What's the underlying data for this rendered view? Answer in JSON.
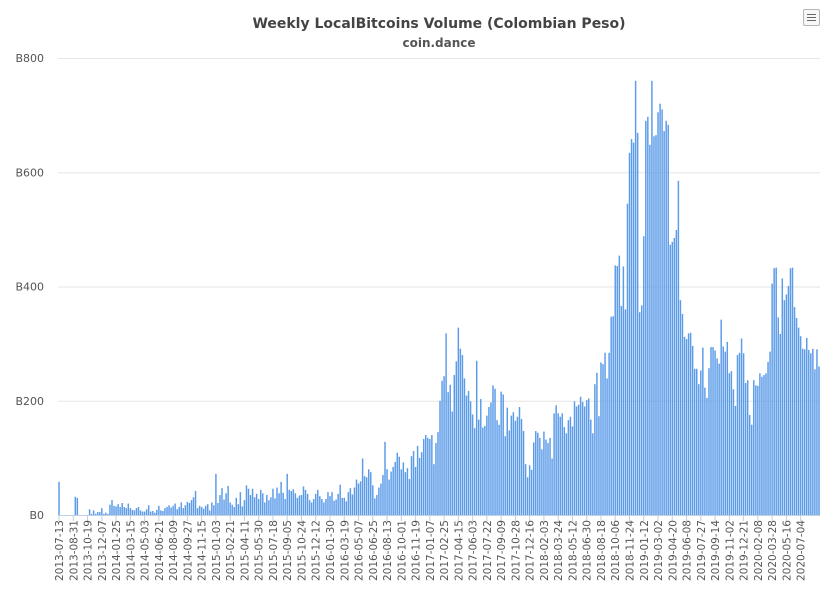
{
  "chart_data": {
    "type": "bar",
    "title": "Weekly LocalBitcoins Volume (Colombian Peso)",
    "subtitle": "coin.dance",
    "ylabel": "",
    "ylim": [
      0,
      800
    ],
    "y_tick_labels": [
      "B0",
      "B200",
      "B400",
      "B600",
      "B800"
    ],
    "x_tick_labels": [
      "2013-07-13",
      "2013-08-31",
      "2013-10-19",
      "2013-12-07",
      "2014-01-25",
      "2014-03-15",
      "2014-05-03",
      "2014-06-21",
      "2014-08-09",
      "2014-09-27",
      "2014-11-15",
      "2015-01-03",
      "2015-02-21",
      "2015-04-11",
      "2015-05-30",
      "2015-07-18",
      "2015-09-05",
      "2015-10-24",
      "2015-12-12",
      "2016-01-30",
      "2016-03-19",
      "2016-05-07",
      "2016-06-25",
      "2016-08-13",
      "2016-10-01",
      "2016-11-19",
      "2017-01-07",
      "2017-02-25",
      "2017-04-15",
      "2017-06-03",
      "2017-07-22",
      "2017-09-09",
      "2017-10-28",
      "2017-12-16",
      "2018-02-03",
      "2018-03-24",
      "2018-05-12",
      "2018-06-30",
      "2018-08-18",
      "2018-10-06",
      "2018-11-24",
      "2019-01-12",
      "2019-03-02",
      "2019-04-20",
      "2019-06-08",
      "2019-07-27",
      "2019-09-14",
      "2019-11-02",
      "2019-12-21",
      "2020-02-08",
      "2020-03-28",
      "2020-05-16",
      "2020-07-04"
    ],
    "weeks_per_tick": 7,
    "bar_color": "#5b9be8",
    "grid": true,
    "legend": "none",
    "values": [
      58,
      0,
      0,
      0,
      0,
      0,
      0,
      0,
      32,
      30,
      0,
      0,
      0,
      0,
      0,
      10,
      2,
      8,
      2,
      5,
      5,
      12,
      2,
      4,
      2,
      18,
      26,
      16,
      15,
      19,
      14,
      21,
      14,
      12,
      20,
      12,
      9,
      8,
      12,
      14,
      8,
      6,
      6,
      10,
      17,
      6,
      7,
      4,
      9,
      16,
      8,
      7,
      12,
      14,
      17,
      13,
      16,
      20,
      10,
      14,
      22,
      12,
      17,
      23,
      21,
      26,
      31,
      42,
      12,
      16,
      14,
      11,
      16,
      19,
      8,
      22,
      17,
      72,
      21,
      35,
      47,
      27,
      38,
      51,
      22,
      18,
      14,
      30,
      19,
      40,
      15,
      26,
      52,
      46,
      35,
      46,
      31,
      37,
      28,
      44,
      38,
      22,
      35,
      26,
      31,
      46,
      29,
      48,
      38,
      58,
      39,
      28,
      72,
      44,
      42,
      45,
      38,
      30,
      34,
      35,
      50,
      44,
      37,
      26,
      22,
      28,
      37,
      44,
      33,
      28,
      22,
      28,
      40,
      33,
      40,
      25,
      27,
      37,
      53,
      30,
      30,
      24,
      40,
      47,
      36,
      48,
      62,
      55,
      59,
      99,
      68,
      66,
      80,
      75,
      52,
      29,
      35,
      48,
      55,
      70,
      128,
      80,
      62,
      76,
      84,
      93,
      109,
      102,
      80,
      92,
      75,
      82,
      63,
      103,
      112,
      84,
      121,
      100,
      110,
      133,
      140,
      135,
      133,
      140,
      89,
      126,
      145,
      200,
      235,
      243,
      318,
      215,
      228,
      181,
      245,
      269,
      328,
      291,
      280,
      239,
      209,
      217,
      199,
      176,
      152,
      270,
      167,
      203,
      153,
      156,
      174,
      189,
      197,
      227,
      221,
      166,
      158,
      216,
      211,
      138,
      188,
      148,
      174,
      180,
      165,
      172,
      189,
      168,
      147,
      89,
      66,
      87,
      79,
      127,
      147,
      144,
      135,
      115,
      146,
      132,
      126,
      135,
      99,
      178,
      192,
      178,
      172,
      178,
      154,
      143,
      166,
      172,
      155,
      199,
      190,
      193,
      207,
      198,
      190,
      201,
      204,
      167,
      143,
      229,
      249,
      173,
      267,
      264,
      284,
      239,
      284,
      347,
      348,
      437,
      436,
      454,
      366,
      435,
      360,
      545,
      634,
      658,
      652,
      760,
      669,
      355,
      367,
      488,
      690,
      697,
      648,
      760,
      663,
      665,
      705,
      720,
      710,
      672,
      690,
      683,
      473,
      478,
      485,
      499,
      585,
      376,
      352,
      312,
      308,
      318,
      319,
      296,
      256,
      256,
      229,
      253,
      293,
      223,
      205,
      257,
      294,
      294,
      288,
      274,
      265,
      342,
      295,
      286,
      303,
      248,
      252,
      220,
      191,
      280,
      284,
      309,
      283,
      231,
      236,
      175,
      158,
      236,
      227,
      226,
      248,
      242,
      245,
      248,
      268,
      286,
      405,
      432,
      433,
      346,
      317,
      414,
      376,
      386,
      401,
      432,
      433,
      364,
      345,
      328,
      313,
      291,
      290,
      310,
      289,
      283,
      291,
      255,
      290,
      260
    ]
  }
}
